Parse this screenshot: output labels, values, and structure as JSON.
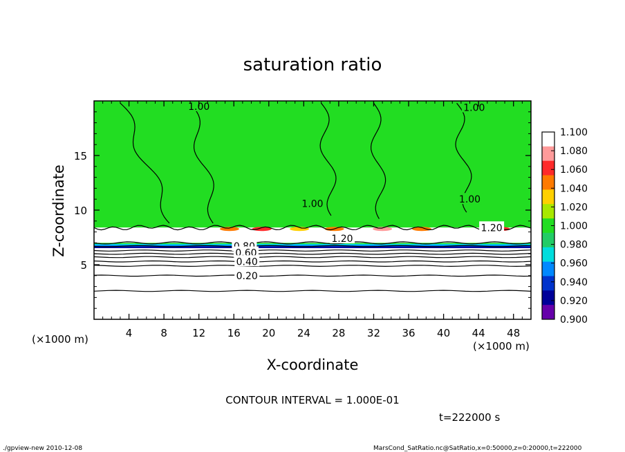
{
  "chart_data": {
    "type": "heatmap",
    "title": "saturation ratio",
    "xlabel": "X-coordinate",
    "ylabel": "Z-coordinate",
    "x_unit": "(×1000 m)",
    "y_unit": "(×1000 m)",
    "xlim": [
      0,
      50
    ],
    "ylim": [
      0,
      20
    ],
    "x_ticks": [
      4,
      8,
      12,
      16,
      20,
      24,
      28,
      32,
      36,
      40,
      44,
      48
    ],
    "y_ticks": [
      5,
      10,
      15
    ],
    "colorbar": {
      "levels": [
        "1.100",
        "1.080",
        "1.060",
        "1.040",
        "1.020",
        "1.000",
        "0.980",
        "0.960",
        "0.940",
        "0.920",
        "0.900"
      ],
      "colors": [
        "#ffffff",
        "#ff9a9a",
        "#ff2a2a",
        "#ff7a00",
        "#ffd000",
        "#a8e800",
        "#22dd22",
        "#22cc66",
        "#00dddd",
        "#0088ff",
        "#0033cc",
        "#000099",
        "#6600aa"
      ]
    },
    "contour_labels": [
      {
        "text": "1.00",
        "x": 12.0,
        "z": 19.5
      },
      {
        "text": "1.00",
        "x": 43.5,
        "z": 19.4
      },
      {
        "text": "1.00",
        "x": 25.0,
        "z": 10.6
      },
      {
        "text": "1.00",
        "x": 43.0,
        "z": 11.0
      },
      {
        "text": "1.20",
        "x": 28.4,
        "z": 7.4
      },
      {
        "text": "1.20",
        "x": 45.5,
        "z": 8.4
      },
      {
        "text": "0.80",
        "x": 17.2,
        "z": 6.7
      },
      {
        "text": "0.60",
        "x": 17.4,
        "z": 6.1
      },
      {
        "text": "0.40",
        "x": 17.5,
        "z": 5.3
      },
      {
        "text": "0.20",
        "x": 17.5,
        "z": 4.0
      }
    ],
    "boundaries_km": {
      "cloud_top": 8.4,
      "cloud_bottom": 7.0
    },
    "background_colors": {
      "supersat_region": "#22dd22",
      "contour_line": "#000000",
      "cloud_region": "#ffffff"
    }
  },
  "annotations": {
    "contour_interval": "CONTOUR INTERVAL = 1.000E-01",
    "time": "t=222000 s",
    "footer_left": "./gpview-new 2010-12-08",
    "footer_right": "MarsCond_SatRatio.nc@SatRatio,x=0:50000,z=0:20000,t=222000"
  }
}
